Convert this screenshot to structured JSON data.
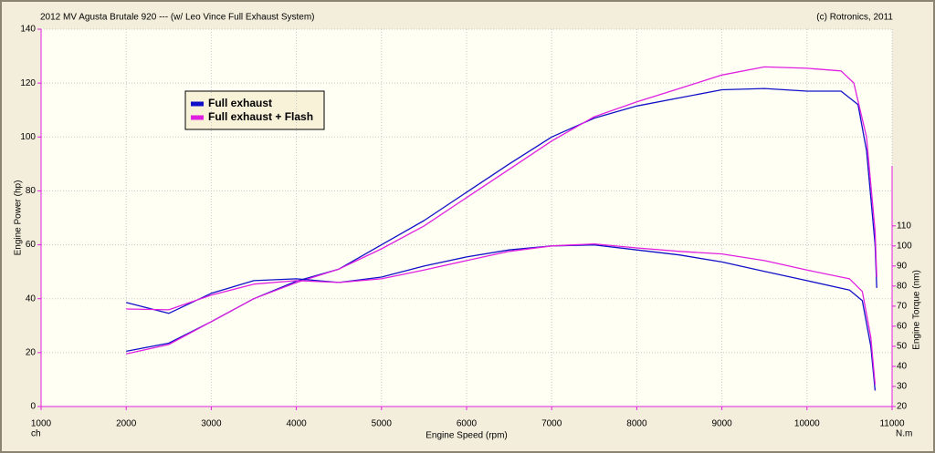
{
  "chart_data": {
    "type": "line",
    "title": "2012 MV Agusta Brutale 920 --- (w/ Leo Vince Full Exhaust System)",
    "subtitle": "(c) Rotronics, 2011",
    "xlabel": "Engine Speed (rpm)",
    "ylabel": "Engine Power (hp)",
    "y2label": "Engine Torque (nm)",
    "y_unit": "ch",
    "y2_unit": "N.m",
    "xlim": [
      1000,
      11000
    ],
    "xticks": [
      1000,
      2000,
      3000,
      4000,
      5000,
      6000,
      7000,
      8000,
      9000,
      10000,
      11000
    ],
    "ylim": [
      0,
      140
    ],
    "yticks": [
      0,
      20,
      40,
      60,
      80,
      100,
      120,
      140
    ],
    "y2lim": [
      20,
      208
    ],
    "y2ticks": [
      20,
      30,
      40,
      50,
      60,
      70,
      80,
      90,
      100,
      110
    ],
    "grid": true,
    "legend": "upper left",
    "series": [
      {
        "name": "Full exhaust",
        "color": "#1010c8",
        "x": [
          2000,
          2500,
          3000,
          3500,
          4000,
          4500,
          5000,
          5500,
          6000,
          6500,
          7000,
          7500,
          8000,
          8500,
          9000,
          9500,
          10000,
          10400,
          10600,
          10700,
          10800,
          10820
        ],
        "values": [
          20.5,
          23.5,
          31.5,
          40,
          46.5,
          51,
          60,
          69,
          79.5,
          90,
          100,
          107,
          111.5,
          114.5,
          117.5,
          118,
          117,
          117,
          112,
          95,
          60,
          44
        ]
      },
      {
        "name": "Full exhaust + Flash",
        "color": "#e020e0",
        "x": [
          2000,
          2500,
          3000,
          3500,
          4000,
          4500,
          5000,
          5500,
          6000,
          6500,
          7000,
          7500,
          8000,
          8500,
          9000,
          9500,
          10000,
          10400,
          10550,
          10700,
          10800,
          10820
        ],
        "values": [
          19.5,
          23,
          31.5,
          40,
          46,
          51,
          58.5,
          67,
          77.5,
          88,
          98.5,
          107.5,
          113,
          118,
          123,
          126,
          125.5,
          124.5,
          120,
          100,
          65,
          48
        ]
      },
      {
        "color": "#1010c8",
        "axis": "y2",
        "x": [
          2000,
          2500,
          3000,
          3500,
          4000,
          4500,
          5000,
          5500,
          6000,
          6500,
          7000,
          7500,
          8000,
          8500,
          9000,
          9500,
          10000,
          10500,
          10650,
          10750,
          10800
        ],
        "values": [
          71.8,
          66.4,
          76.4,
          82.7,
          83.6,
          81.8,
          84.5,
          90,
          94.5,
          98,
          100,
          100.5,
          98,
          95.5,
          92,
          87.3,
          82.7,
          78,
          72.7,
          50,
          28
        ]
      },
      {
        "color": "#e020e0",
        "axis": "y2",
        "x": [
          2000,
          2500,
          3000,
          3500,
          4000,
          4500,
          5000,
          5500,
          6000,
          6500,
          7000,
          7500,
          8000,
          8500,
          9000,
          9500,
          10000,
          10500,
          10650,
          10750,
          10800
        ],
        "values": [
          68.6,
          68.2,
          75.5,
          81,
          82.7,
          81.8,
          83.6,
          88,
          92.7,
          97.3,
          100,
          101,
          99,
          97.3,
          96,
          92.7,
          88,
          83.6,
          77.3,
          54.5,
          31
        ]
      }
    ]
  }
}
